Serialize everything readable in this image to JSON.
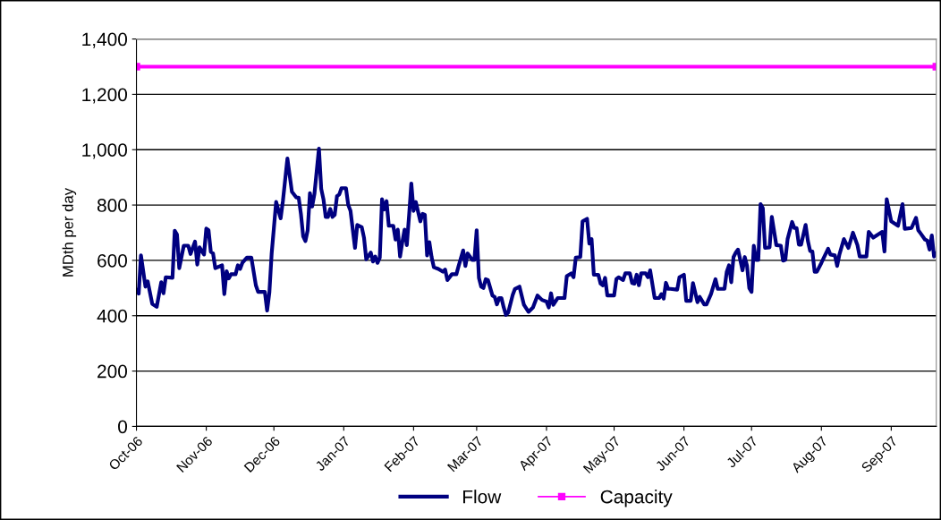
{
  "chart_data": {
    "type": "line",
    "ylabel": "MDth per day",
    "xlim": [
      "2006-10-01",
      "2007-09-21"
    ],
    "xticks": [
      {
        "value": "2006-10-01",
        "label": "Oct-06"
      },
      {
        "value": "2006-11-01",
        "label": "Nov-06"
      },
      {
        "value": "2006-12-01",
        "label": "Dec-06"
      },
      {
        "value": "2007-01-01",
        "label": "Jan-07"
      },
      {
        "value": "2007-02-01",
        "label": "Feb-07"
      },
      {
        "value": "2007-03-01",
        "label": "Mar-07"
      },
      {
        "value": "2007-04-01",
        "label": "Apr-07"
      },
      {
        "value": "2007-05-01",
        "label": "May-07"
      },
      {
        "value": "2007-06-01",
        "label": "Jun-07"
      },
      {
        "value": "2007-07-01",
        "label": "Jul-07"
      },
      {
        "value": "2007-08-01",
        "label": "Aug-07"
      },
      {
        "value": "2007-09-01",
        "label": "Sep-07"
      }
    ],
    "ylim": [
      0,
      1400
    ],
    "yticks": [
      0,
      200,
      400,
      600,
      800,
      {
        "value": 1000,
        "label": "1,000"
      },
      {
        "value": 1200,
        "label": "1,200"
      },
      {
        "value": 1400,
        "label": "1,400"
      }
    ],
    "grid": "y",
    "legend": "bottom",
    "series": [
      {
        "name": "Flow",
        "color": "#000080",
        "marker": "none",
        "x": [
          "2006-10-01",
          "2006-10-02",
          "2006-10-03",
          "2006-10-05",
          "2006-10-06",
          "2006-10-08",
          "2006-10-10",
          "2006-10-12",
          "2006-10-13",
          "2006-10-14",
          "2006-10-17",
          "2006-10-18",
          "2006-10-19",
          "2006-10-20",
          "2006-10-22",
          "2006-10-24",
          "2006-10-25",
          "2006-10-27",
          "2006-10-28",
          "2006-10-29",
          "2006-10-31",
          "2006-11-01",
          "2006-11-02",
          "2006-11-03",
          "2006-11-04",
          "2006-11-05",
          "2006-11-08",
          "2006-11-09",
          "2006-11-10",
          "2006-11-11",
          "2006-11-12",
          "2006-11-14",
          "2006-11-15",
          "2006-11-16",
          "2006-11-17",
          "2006-11-19",
          "2006-11-21",
          "2006-11-23",
          "2006-11-24",
          "2006-11-27",
          "2006-11-28",
          "2006-11-29",
          "2006-11-30",
          "2006-12-02",
          "2006-12-04",
          "2006-12-05",
          "2006-12-07",
          "2006-12-09",
          "2006-12-11",
          "2006-12-12",
          "2006-12-13",
          "2006-12-14",
          "2006-12-15",
          "2006-12-16",
          "2006-12-17",
          "2006-12-18",
          "2006-12-19",
          "2006-12-21",
          "2006-12-22",
          "2006-12-23",
          "2006-12-24",
          "2006-12-25",
          "2006-12-26",
          "2006-12-27",
          "2006-12-28",
          "2006-12-29",
          "2006-12-30",
          "2006-12-31",
          "2007-01-02",
          "2007-01-03",
          "2007-01-04",
          "2007-01-06",
          "2007-01-07",
          "2007-01-09",
          "2007-01-10",
          "2007-01-11",
          "2007-01-13",
          "2007-01-14",
          "2007-01-15",
          "2007-01-16",
          "2007-01-17",
          "2007-01-18",
          "2007-01-19",
          "2007-01-20",
          "2007-01-21",
          "2007-01-23",
          "2007-01-24",
          "2007-01-25",
          "2007-01-26",
          "2007-01-27",
          "2007-01-28",
          "2007-01-29",
          "2007-01-30",
          "2007-01-31",
          "2007-02-01",
          "2007-02-02",
          "2007-02-04",
          "2007-02-05",
          "2007-02-06",
          "2007-02-07",
          "2007-02-08",
          "2007-02-09",
          "2007-02-10",
          "2007-02-12",
          "2007-02-14",
          "2007-02-15",
          "2007-02-16",
          "2007-02-18",
          "2007-02-20",
          "2007-02-21",
          "2007-02-23",
          "2007-02-24",
          "2007-02-25",
          "2007-02-27",
          "2007-02-28",
          "2007-03-01",
          "2007-03-02",
          "2007-03-03",
          "2007-03-04",
          "2007-03-05",
          "2007-03-06",
          "2007-03-08",
          "2007-03-09",
          "2007-03-10",
          "2007-03-11",
          "2007-03-12",
          "2007-03-13",
          "2007-03-14",
          "2007-03-15",
          "2007-03-17",
          "2007-03-18",
          "2007-03-20",
          "2007-03-22",
          "2007-03-24",
          "2007-03-26",
          "2007-03-28",
          "2007-03-30",
          "2007-04-01",
          "2007-04-02",
          "2007-04-03",
          "2007-04-04",
          "2007-04-06",
          "2007-04-09",
          "2007-04-10",
          "2007-04-12",
          "2007-04-13",
          "2007-04-14",
          "2007-04-16",
          "2007-04-17",
          "2007-04-19",
          "2007-04-20",
          "2007-04-21",
          "2007-04-22",
          "2007-04-24",
          "2007-04-25",
          "2007-04-26",
          "2007-04-27",
          "2007-04-28",
          "2007-05-01",
          "2007-05-02",
          "2007-05-03",
          "2007-05-05",
          "2007-05-06",
          "2007-05-08",
          "2007-05-09",
          "2007-05-10",
          "2007-05-11",
          "2007-05-12",
          "2007-05-13",
          "2007-05-15",
          "2007-05-16",
          "2007-05-17",
          "2007-05-19",
          "2007-05-21",
          "2007-05-22",
          "2007-05-23",
          "2007-05-24",
          "2007-05-25",
          "2007-05-26",
          "2007-05-29",
          "2007-05-30",
          "2007-06-01",
          "2007-06-02",
          "2007-06-04",
          "2007-06-05",
          "2007-06-07",
          "2007-06-08",
          "2007-06-10",
          "2007-06-11",
          "2007-06-13",
          "2007-06-15",
          "2007-06-16",
          "2007-06-19",
          "2007-06-20",
          "2007-06-21",
          "2007-06-22",
          "2007-06-23",
          "2007-06-24",
          "2007-06-25",
          "2007-06-27",
          "2007-06-28",
          "2007-06-29",
          "2007-06-30",
          "2007-07-01",
          "2007-07-02",
          "2007-07-03",
          "2007-07-04",
          "2007-07-05",
          "2007-07-06",
          "2007-07-07",
          "2007-07-09",
          "2007-07-10",
          "2007-07-12",
          "2007-07-14",
          "2007-07-15",
          "2007-07-16",
          "2007-07-17",
          "2007-07-19",
          "2007-07-20",
          "2007-07-21",
          "2007-07-22",
          "2007-07-23",
          "2007-07-25",
          "2007-07-26",
          "2007-07-27",
          "2007-07-28",
          "2007-07-29",
          "2007-07-30",
          "2007-08-01",
          "2007-08-04",
          "2007-08-05",
          "2007-08-07",
          "2007-08-08",
          "2007-08-09",
          "2007-08-11",
          "2007-08-13",
          "2007-08-15",
          "2007-08-17",
          "2007-08-18",
          "2007-08-21",
          "2007-08-22",
          "2007-08-24",
          "2007-08-26",
          "2007-08-28",
          "2007-08-29",
          "2007-08-30",
          "2007-09-01",
          "2007-09-04",
          "2007-09-06",
          "2007-09-07",
          "2007-09-10",
          "2007-09-12",
          "2007-09-13",
          "2007-09-14",
          "2007-09-16",
          "2007-09-17",
          "2007-09-18",
          "2007-09-19",
          "2007-09-20",
          "2007-09-21"
        ],
        "values": [
          492,
          480,
          618,
          505,
          524,
          443,
          432,
          521,
          481,
          539,
          537,
          707,
          693,
          572,
          653,
          653,
          623,
          668,
          585,
          647,
          621,
          715,
          709,
          631,
          625,
          572,
          582,
          478,
          561,
          535,
          550,
          550,
          582,
          569,
          591,
          610,
          610,
          510,
          486,
          486,
          419,
          484,
          623,
          811,
          752,
          814,
          968,
          848,
          827,
          827,
          768,
          687,
          670,
          709,
          843,
          795,
          840,
          1004,
          859,
          821,
          757,
          757,
          786,
          757,
          765,
          832,
          838,
          861,
          861,
          800,
          779,
          645,
          728,
          720,
          682,
          604,
          628,
          596,
          614,
          591,
          610,
          821,
          784,
          814,
          725,
          725,
          675,
          711,
          614,
          666,
          711,
          655,
          762,
          878,
          779,
          811,
          741,
          768,
          765,
          618,
          666,
          612,
          575,
          569,
          559,
          567,
          529,
          550,
          550,
          580,
          636,
          580,
          625,
          602,
          602,
          709,
          537,
          505,
          500,
          532,
          529,
          473,
          468,
          441,
          464,
          464,
          430,
          403,
          411,
          475,
          497,
          505,
          439,
          414,
          430,
          473,
          457,
          451,
          430,
          481,
          439,
          464,
          464,
          543,
          553,
          539,
          610,
          612,
          741,
          750,
          661,
          677,
          548,
          548,
          516,
          510,
          537,
          473,
          473,
          532,
          539,
          529,
          553,
          553,
          518,
          516,
          548,
          510,
          553,
          553,
          539,
          564,
          464,
          464,
          478,
          462,
          519,
          497,
          497,
          494,
          539,
          548,
          454,
          454,
          518,
          449,
          468,
          441,
          441,
          478,
          532,
          497,
          497,
          559,
          582,
          521,
          612,
          628,
          639,
          564,
          612,
          580,
          500,
          486,
          653,
          602,
          602,
          803,
          789,
          645,
          647,
          757,
          655,
          653,
          599,
          602,
          677,
          739,
          717,
          717,
          657,
          657,
          728,
          671,
          634,
          632,
          559,
          559,
          591,
          642,
          621,
          618,
          580,
          621,
          677,
          645,
          700,
          655,
          614,
          614,
          703,
          682,
          693,
          703,
          632,
          821,
          741,
          725,
          803,
          714,
          717,
          754,
          709,
          698,
          675,
          671,
          639,
          690,
          614,
          625
        ]
      },
      {
        "name": "Capacity",
        "color": "#ff00ff",
        "marker": "square",
        "x": [
          "2006-10-01",
          "2007-09-21"
        ],
        "values": [
          1300,
          1300
        ]
      }
    ]
  }
}
